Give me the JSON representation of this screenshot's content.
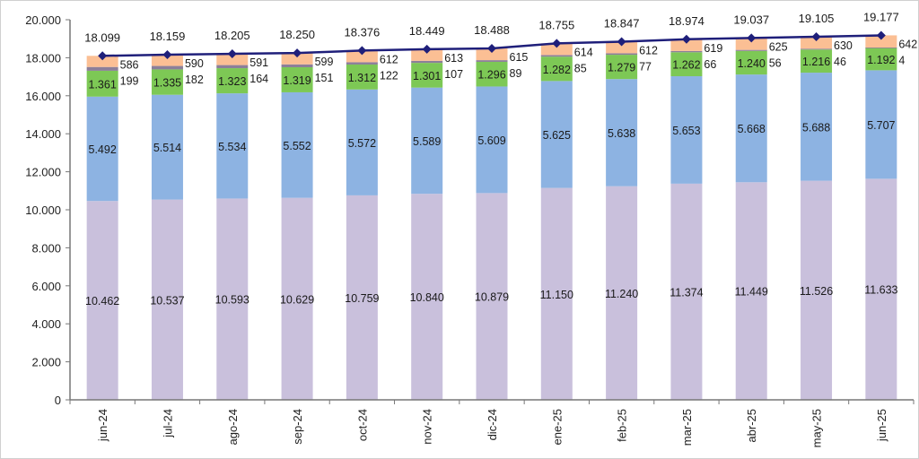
{
  "chart_data": {
    "type": "bar",
    "subtype": "stacked-bar-with-total-line",
    "title": "",
    "xlabel": "",
    "ylabel": "",
    "ylim": [
      0,
      20000
    ],
    "yticks": [
      0,
      2000,
      4000,
      6000,
      8000,
      10000,
      12000,
      14000,
      16000,
      18000,
      20000
    ],
    "ytick_labels": [
      "0",
      "2.000",
      "4.000",
      "6.000",
      "8.000",
      "10.000",
      "12.000",
      "14.000",
      "16.000",
      "18.000",
      "20.000"
    ],
    "grid": false,
    "legend": "none",
    "categories": [
      "jun-24",
      "jul-24",
      "ago-24",
      "sep-24",
      "oct-24",
      "nov-24",
      "dic-24",
      "ene-25",
      "feb-25",
      "mar-25",
      "abr-25",
      "may-25",
      "jun-25"
    ],
    "series": [
      {
        "name": "series-1",
        "color": "#c9c0dc",
        "values": [
          10462,
          10537,
          10593,
          10629,
          10759,
          10840,
          10879,
          11150,
          11240,
          11374,
          11449,
          11526,
          11633
        ],
        "labels": [
          "10.462",
          "10.537",
          "10.593",
          "10.629",
          "10.759",
          "10.840",
          "10.879",
          "11.150",
          "11.240",
          "11.374",
          "11.449",
          "11.526",
          "11.633"
        ]
      },
      {
        "name": "series-2",
        "color": "#8db3e2",
        "values": [
          5492,
          5514,
          5534,
          5552,
          5572,
          5589,
          5609,
          5625,
          5638,
          5653,
          5668,
          5688,
          5707
        ],
        "labels": [
          "5.492",
          "5.514",
          "5.534",
          "5.552",
          "5.572",
          "5.589",
          "5.609",
          "5.625",
          "5.638",
          "5.653",
          "5.668",
          "5.688",
          "5.707"
        ]
      },
      {
        "name": "series-3",
        "color": "#7dc855",
        "values": [
          1361,
          1335,
          1323,
          1319,
          1312,
          1301,
          1296,
          1282,
          1279,
          1262,
          1240,
          1216,
          1192
        ],
        "labels": [
          "1.361",
          "1.335",
          "1.323",
          "1.319",
          "1.312",
          "1.301",
          "1.296",
          "1.282",
          "1.279",
          "1.262",
          "1.240",
          "1.216",
          "1.192"
        ]
      },
      {
        "name": "series-4",
        "color": "#8c7f99",
        "values": [
          199,
          182,
          164,
          151,
          122,
          107,
          89,
          85,
          77,
          66,
          56,
          46,
          4
        ],
        "labels": [
          "199",
          "182",
          "164",
          "151",
          "122",
          "107",
          "89",
          "85",
          "77",
          "66",
          "56",
          "46",
          "4"
        ]
      },
      {
        "name": "series-5",
        "color": "#fbbf94",
        "values": [
          586,
          590,
          591,
          599,
          612,
          613,
          615,
          614,
          612,
          619,
          625,
          630,
          642
        ],
        "labels": [
          "586",
          "590",
          "591",
          "599",
          "612",
          "613",
          "615",
          "614",
          "612",
          "619",
          "625",
          "630",
          "642"
        ]
      }
    ],
    "total_line": {
      "name": "total",
      "color": "#1f1f7a",
      "values": [
        18099,
        18159,
        18205,
        18250,
        18376,
        18449,
        18488,
        18755,
        18847,
        18974,
        19037,
        19105,
        19177
      ],
      "labels": [
        "18.099",
        "18.159",
        "18.205",
        "18.250",
        "18.376",
        "18.449",
        "18.488",
        "18.755",
        "18.847",
        "18.974",
        "19.037",
        "19.105",
        "19.177"
      ]
    }
  }
}
